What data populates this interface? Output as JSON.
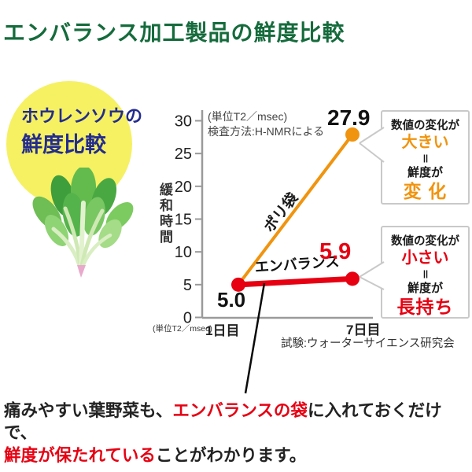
{
  "title": "エンバランス加工製品の鮮度比較",
  "badge": {
    "line1": "ホウレンソウの",
    "line2": "鮮度比較"
  },
  "chart_data": {
    "type": "line",
    "x": [
      "1日目",
      "7日目"
    ],
    "series": [
      {
        "name": "ポリ袋",
        "values": [
          5.0,
          27.9
        ],
        "color": "#f0940f",
        "width": 4,
        "dots": "last"
      },
      {
        "name": "エンバランス",
        "values": [
          5.0,
          5.9
        ],
        "color": "#e60012",
        "width": 7,
        "dots": "both"
      }
    ],
    "ylabel": "緩和時間",
    "yticks": [
      0,
      5,
      10,
      15,
      20,
      25,
      30
    ],
    "ylim": [
      0,
      31.5
    ],
    "grid": false,
    "legend_position": "on-line",
    "unit_note": "(単位T2／msec)",
    "method_note": "検査方法:H-NMRによる",
    "unit_note_bottom": "(単位T2／msec)",
    "source": "試験:ウォーターサイエンス研究会",
    "value_labels": {
      "day1": "5.0",
      "poly_day7": "27.9",
      "emb_day7": "5.9"
    }
  },
  "callout_changed": {
    "head": "数値の変化が",
    "em1": "大きい",
    "equals": "＝",
    "mid": "鮮度が",
    "em2": "変 化"
  },
  "callout_kept": {
    "head": "数値の変化が",
    "em1": "小さい",
    "equals": "＝",
    "mid": "鮮度が",
    "em2": "長持ち"
  },
  "footer": {
    "seg1": "痛みやすい葉野菜も、",
    "seg2": "エンバランスの袋",
    "seg3": "に入れておくだけで、",
    "seg4": "鮮度が保たれている",
    "seg5": "ことがわかります。"
  },
  "colors": {
    "title_green": "#156b3c",
    "poly_orange": "#f0940f",
    "embalance_red": "#e60012",
    "badge_navy": "#232c8e",
    "badge_yellow": "#f5f163",
    "axis_gray": "#9a9a9a"
  }
}
